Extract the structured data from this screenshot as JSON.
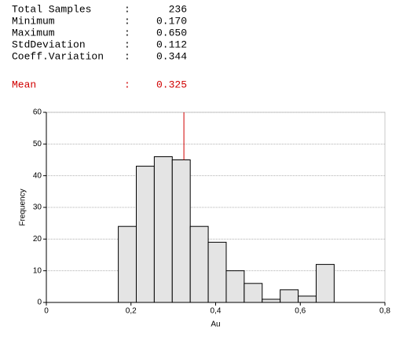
{
  "stats": {
    "rows": [
      {
        "label": "Total Samples",
        "sep": ":",
        "value": 236
      },
      {
        "label": "Minimum",
        "sep": ":",
        "value": 0.17,
        "value_label": "0.170"
      },
      {
        "label": "Maximum",
        "sep": ":",
        "value": 0.65,
        "value_label": "0.650"
      },
      {
        "label": "StdDeviation",
        "sep": ":",
        "value": 0.112,
        "value_label": "0.112"
      },
      {
        "label": "Coeff.Variation",
        "sep": ":",
        "value": 0.344,
        "value_label": "0.344"
      }
    ],
    "mean": {
      "label": "Mean",
      "sep": ":",
      "value": 0.325,
      "value_label": "0.325",
      "color": "#d00000"
    }
  },
  "chart_data": {
    "type": "histogram",
    "x_label": "Au",
    "y_label": "Frequency",
    "bins": [
      0.17,
      0.2125,
      0.255,
      0.2975,
      0.34,
      0.3825,
      0.425,
      0.4675,
      0.51,
      0.5525,
      0.595,
      0.6375,
      0.68
    ],
    "values": [
      24,
      43,
      46,
      45,
      24,
      19,
      10,
      6,
      1,
      4,
      2,
      12
    ],
    "color": "#e4e4e4",
    "xlim": [
      0,
      0.8
    ],
    "xticks": [
      0,
      {
        "value": 0.2,
        "label": "0,2"
      },
      {
        "value": 0.4,
        "label": "0,4"
      },
      {
        "value": 0.6,
        "label": "0,6"
      },
      {
        "value": 0.8,
        "label": "0,8"
      }
    ],
    "ylim": [
      0,
      60
    ],
    "yticks": [
      0,
      10,
      20,
      30,
      40,
      50,
      60
    ],
    "grid": true
  }
}
